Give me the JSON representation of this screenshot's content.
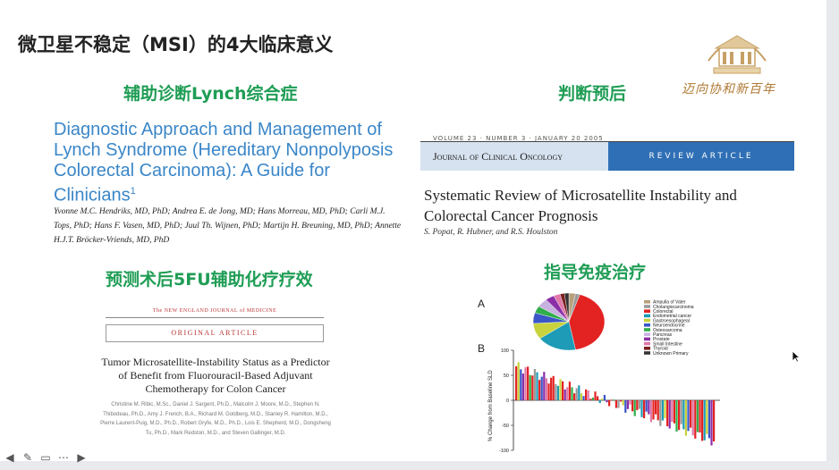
{
  "slide": {
    "title": "微卫星不稳定（MSI）的4大临床意义",
    "logo_caption": "迈向协和新百年"
  },
  "sections": {
    "s1": "辅助诊断Lynch综合症",
    "s2": "判断预后",
    "s3": "预测术后5FU辅助化疗疗效",
    "s4": "指导免疫治疗"
  },
  "paper1": {
    "title": "Diagnostic Approach and Management of Lynch Syndrome (Hereditary Nonpolyposis Colorectal Carcinoma): A Guide for Clinicians",
    "sup": "1",
    "authors": "Yvonne M.C. Hendriks, MD, PhD; Andrea E. de Jong, MD; Hans Morreau, MD, PhD; Carli M.J. Tops, PhD; Hans F. Vasen, MD, PhD; Juul Th. Wijnen, PhD; Martijn H. Breuning, MD, PhD; Annette H.J.T. Bröcker-Vriends, MD, PhD"
  },
  "paper2": {
    "meta": "VOLUME 23 · NUMBER 3 · JANUARY 20 2005",
    "journal": "Journal of Clinical Oncology",
    "label": "REVIEW ARTICLE",
    "title": "Systematic Review of Microsatellite Instability and Colorectal Cancer Prognosis",
    "authors": "S. Popat, R. Hubner, and R.S. Houlston"
  },
  "paper3": {
    "masthead": "The NEW ENGLAND JOURNAL of MEDICINE",
    "label": "ORIGINAL ARTICLE",
    "title": "Tumor Microsatellite-Instability Status as a Predictor of Benefit from Fluorouracil-Based Adjuvant Chemotherapy for Colon Cancer",
    "authors": "Christine M. Ribic, M.Sc., Daniel J. Sargent, Ph.D., Malcolm J. Moore, M.D., Stephen N. Thibodeau, Ph.D., Amy J. French, B.A., Richard M. Goldberg, M.D., Stanley R. Hamilton, M.D., Pierre Laurent-Puig, M.D., Ph.D., Robert Gryfe, M.D., Ph.D., Lois E. Shepherd, M.D., Dongsheng Tu, Ph.D., Mark Redston, M.D., and Steven Gallinger, M.D."
  },
  "figure": {
    "panel_a": "A",
    "panel_b": "B",
    "ylabel": "% Change from Baseline SLD",
    "yticks": [
      "100",
      "50",
      "0",
      "-50",
      "-100"
    ],
    "legend": [
      {
        "label": "Ampulla of Vater",
        "color": "#b9a07a"
      },
      {
        "label": "Cholangiocarcinoma",
        "color": "#9a9a9a"
      },
      {
        "label": "Colorectal",
        "color": "#e32222"
      },
      {
        "label": "Endometrial cancer",
        "color": "#1e9bb6"
      },
      {
        "label": "Gastroesophageal",
        "color": "#c8d23c"
      },
      {
        "label": "Neuroendocrine",
        "color": "#3a56c8"
      },
      {
        "label": "Osteosarcoma",
        "color": "#2fae4a"
      },
      {
        "label": "Pancreas",
        "color": "#c8b2e0"
      },
      {
        "label": "Prostate",
        "color": "#8a2fa8"
      },
      {
        "label": "Small Intestine",
        "color": "#e078a8"
      },
      {
        "label": "Thyroid",
        "color": "#7a1f1f"
      },
      {
        "label": "Unknown Primary",
        "color": "#333333"
      }
    ]
  },
  "toolbar": {
    "icons": [
      "prev-icon",
      "pen-icon",
      "subtitle-icon",
      "more-icon",
      "next-icon"
    ]
  }
}
